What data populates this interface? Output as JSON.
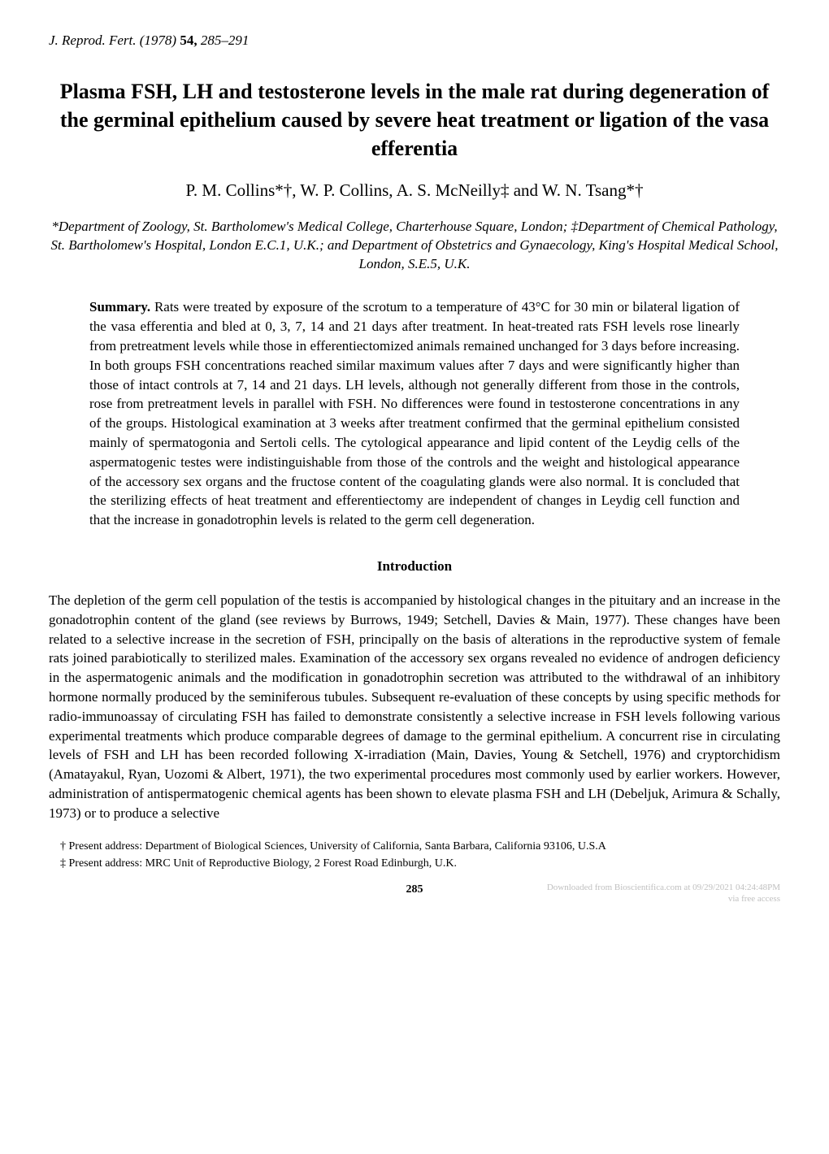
{
  "journal": {
    "name": "J. Reprod. Fert.",
    "year": "(1978)",
    "volume": "54,",
    "pages": "285–291"
  },
  "title": "Plasma FSH, LH and testosterone levels in the male rat during degeneration of the germinal epithelium caused by severe heat treatment or ligation of the vasa efferentia",
  "authors": "P. M. Collins*†, W. P. Collins, A. S. McNeilly‡ and W. N. Tsang*†",
  "affiliations": "*Department of Zoology, St. Bartholomew's Medical College, Charterhouse Square, London; ‡Department of Chemical Pathology, St. Bartholomew's Hospital, London E.C.1, U.K.; and Department of Obstetrics and Gynaecology, King's Hospital Medical School, London, S.E.5, U.K.",
  "summary": {
    "label": "Summary.",
    "text": " Rats were treated by exposure of the scrotum to a temperature of 43°C for 30 min or bilateral ligation of the vasa efferentia and bled at 0, 3, 7, 14 and 21 days after treatment. In heat-treated rats FSH levels rose linearly from pretreatment levels while those in efferentiectomized animals remained unchanged for 3 days before increasing. In both groups FSH concentrations reached similar maximum values after 7 days and were significantly higher than those of intact controls at 7, 14 and 21 days. LH levels, although not generally different from those in the controls, rose from pretreatment levels in parallel with FSH. No differences were found in testosterone concentrations in any of the groups. Histological examination at 3 weeks after treatment confirmed that the germinal epithelium consisted mainly of spermatogonia and Sertoli cells. The cytological appearance and lipid content of the Leydig cells of the aspermatogenic testes were indistinguishable from those of the controls and the weight and histological appearance of the accessory sex organs and the fructose content of the coagulating glands were also normal. It is concluded that the sterilizing effects of heat treatment and efferentiectomy are independent of changes in Leydig cell function and that the increase in gonadotrophin levels is related to the germ cell degeneration."
  },
  "introduction": {
    "heading": "Introduction",
    "body": "The depletion of the germ cell population of the testis is accompanied by histological changes in the pituitary and an increase in the gonadotrophin content of the gland (see reviews by Burrows, 1949; Setchell, Davies & Main, 1977). These changes have been related to a selective increase in the secretion of FSH, principally on the basis of alterations in the reproductive system of female rats joined parabiotically to sterilized males. Examination of the accessory sex organs revealed no evidence of androgen deficiency in the aspermatogenic animals and the modification in gonadotrophin secretion was attributed to the withdrawal of an inhibitory hormone normally produced by the seminiferous tubules. Subsequent re-evaluation of these concepts by using specific methods for radio-immunoassay of circulating FSH has failed to demonstrate consistently a selective increase in FSH levels following various experimental treatments which produce comparable degrees of damage to the germinal epithelium. A concurrent rise in circulating levels of FSH and LH has been recorded following X-irradiation (Main, Davies, Young & Setchell, 1976) and cryptorchidism (Amatayakul, Ryan, Uozomi & Albert, 1971), the two experimental procedures most commonly used by earlier workers. However, administration of antispermatogenic chemical agents has been shown to elevate plasma FSH and LH (Debeljuk, Arimura & Schally, 1973) or to produce a selective"
  },
  "footnotes": {
    "note1": "† Present address: Department of Biological Sciences, University of California, Santa Barbara, California 93106, U.S.A",
    "note2": "‡ Present address: MRC Unit of Reproductive Biology, 2 Forest Road Edinburgh, U.K."
  },
  "footer": {
    "page_number": "285",
    "watermark_line1": "Downloaded from Bioscientifica.com at 09/29/2021 04:24:48PM",
    "watermark_line2": "via free access"
  }
}
